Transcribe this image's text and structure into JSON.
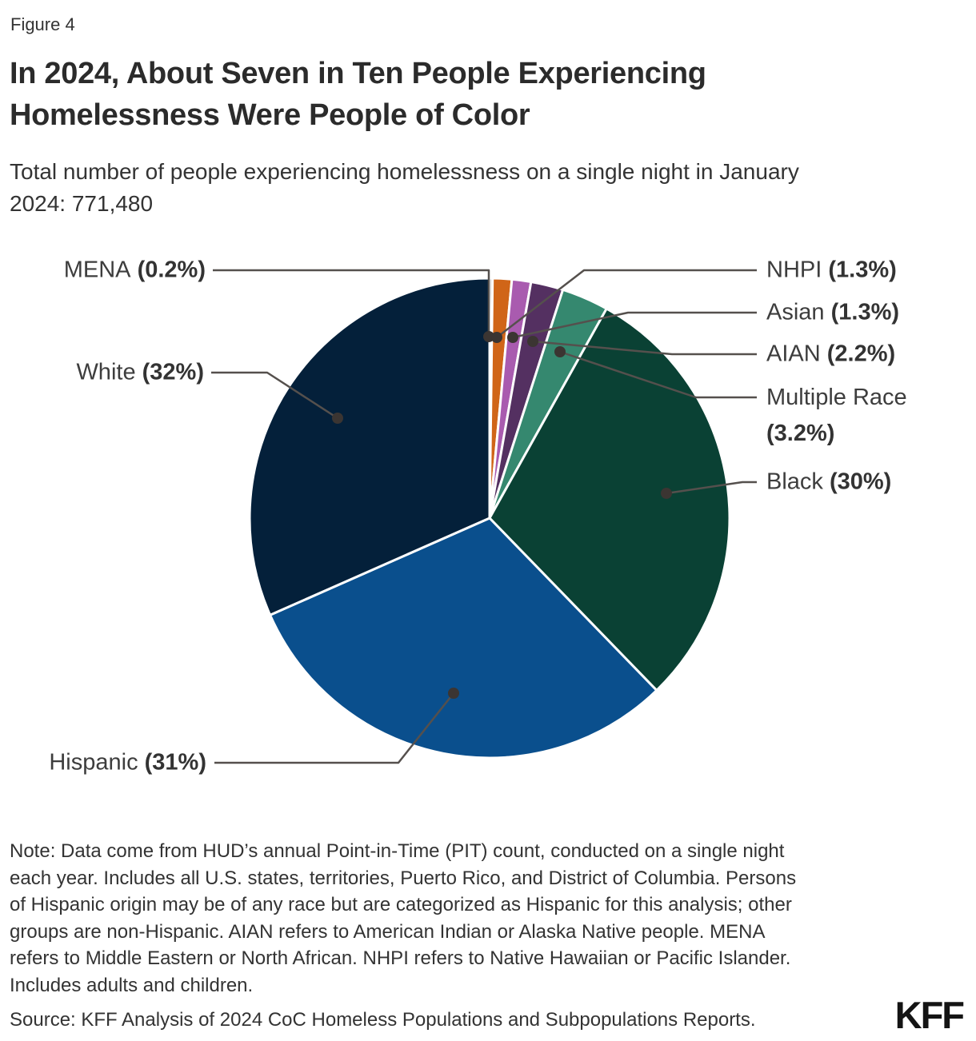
{
  "figure_label": "Figure 4",
  "title": "In 2024, About Seven in Ten People Experiencing\nHomelessness Were People of Color",
  "subtitle": "Total number of people experiencing homelessness on a single night in January\n2024: 771,480",
  "note": "Note: Data come from HUD’s annual Point-in-Time (PIT) count, conducted on a single night\neach year. Includes all U.S. states, territories, Puerto Rico, and District of Columbia. Persons\nof Hispanic origin may be of any race but are categorized as Hispanic for this analysis; other\ngroups are non-Hispanic. AIAN refers to American Indian or Alaska Native people. MENA\nrefers to Middle Eastern or North African. NHPI refers to Native Hawaiian or Pacific Islander.\nIncludes adults and children.",
  "source": "Source: KFF Analysis of 2024 CoC Homeless Populations and Subpopulations Reports.",
  "logo": "KFF",
  "colors": {
    "leader_line": "#55504d",
    "leader_dot": "#3b3532",
    "slice_border": "#ffffff"
  },
  "chart_data": {
    "type": "pie",
    "title": "In 2024, About Seven in Ten People Experiencing Homelessness Were People of Color",
    "total_label": "Total number of people experiencing homelessness on a single night in January 2024: 771,480",
    "total_value": 771480,
    "unit": "percent",
    "direction": "clockwise",
    "start_angle": "12 o'clock",
    "legend_position": "callout-labels",
    "slices": [
      {
        "label": "MENA",
        "value": 0.2,
        "pct_text": "(0.2%)",
        "display": "MENA (0.2%)",
        "color": "#9e9e9e"
      },
      {
        "label": "NHPI",
        "value": 1.3,
        "pct_text": "(1.3%)",
        "display": "NHPI (1.3%)",
        "color": "#d06518"
      },
      {
        "label": "Asian",
        "value": 1.3,
        "pct_text": "(1.3%)",
        "display": "Asian (1.3%)",
        "color": "#a95baf"
      },
      {
        "label": "AIAN",
        "value": 2.2,
        "pct_text": "(2.2%)",
        "display": "AIAN (2.2%)",
        "color": "#543061"
      },
      {
        "label": "Multiple Race",
        "value": 3.2,
        "pct_text": "(3.2%)",
        "display": "Multiple Race (3.2%)",
        "color": "#35886f"
      },
      {
        "label": "Black",
        "value": 30,
        "pct_text": "(30%)",
        "display": "Black (30%)",
        "color": "#0a4134"
      },
      {
        "label": "Hispanic",
        "value": 31,
        "pct_text": "(31%)",
        "display": "Hispanic (31%)",
        "color": "#0a4f8d"
      },
      {
        "label": "White",
        "value": 32,
        "pct_text": "(32%)",
        "display": "White (32%)",
        "color": "#04203a"
      }
    ]
  }
}
